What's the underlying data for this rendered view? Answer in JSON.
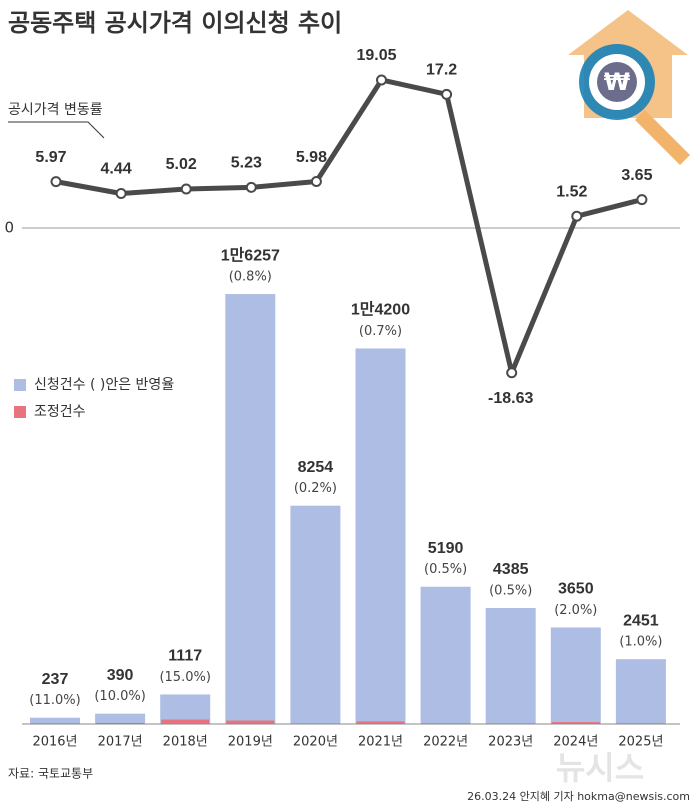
{
  "title": "공동주택 공시가격 이의신청 추이",
  "source": "자료: 국토교통부",
  "credit": "26.03.24 안지혜 기자 hokma@newsis.com",
  "watermark": "뉴시스",
  "chart_data": [
    {
      "type": "line",
      "annotation": "공시가격 변동률",
      "values": [
        5.97,
        4.44,
        5.02,
        5.23,
        5.98,
        19.05,
        17.2,
        -18.63,
        1.52,
        3.65
      ],
      "color": "#4a4a4a",
      "ylim": [
        -20,
        22
      ],
      "yticks": [
        0
      ]
    },
    {
      "type": "bar",
      "categories": [
        "2016년",
        "2017년",
        "2018년",
        "2019년",
        "2020년",
        "2021년",
        "2022년",
        "2023년",
        "2024년",
        "2025년"
      ],
      "series": [
        {
          "name": "신청건수 ( )안은 반영율",
          "color": "#adbde3",
          "values": [
            237,
            390,
            1117,
            16257,
            8254,
            14200,
            5190,
            4385,
            3650,
            2451
          ],
          "value_labels": [
            "237",
            "390",
            "1117",
            "1만6257",
            "8254",
            "1만4200",
            "5190",
            "4385",
            "3650",
            "2451"
          ],
          "rate_labels": [
            "(11.0%)",
            "(10.0%)",
            "(15.0%)",
            "(0.8%)",
            "(0.2%)",
            "(0.7%)",
            "(0.5%)",
            "(0.5%)",
            "(2.0%)",
            "(1.0%)"
          ]
        },
        {
          "name": "조정건수",
          "color": "#e8737f",
          "values": [
            26,
            39,
            168,
            130,
            17,
            99,
            26,
            22,
            73,
            25
          ]
        }
      ],
      "ylim": [
        0,
        17000
      ]
    }
  ]
}
